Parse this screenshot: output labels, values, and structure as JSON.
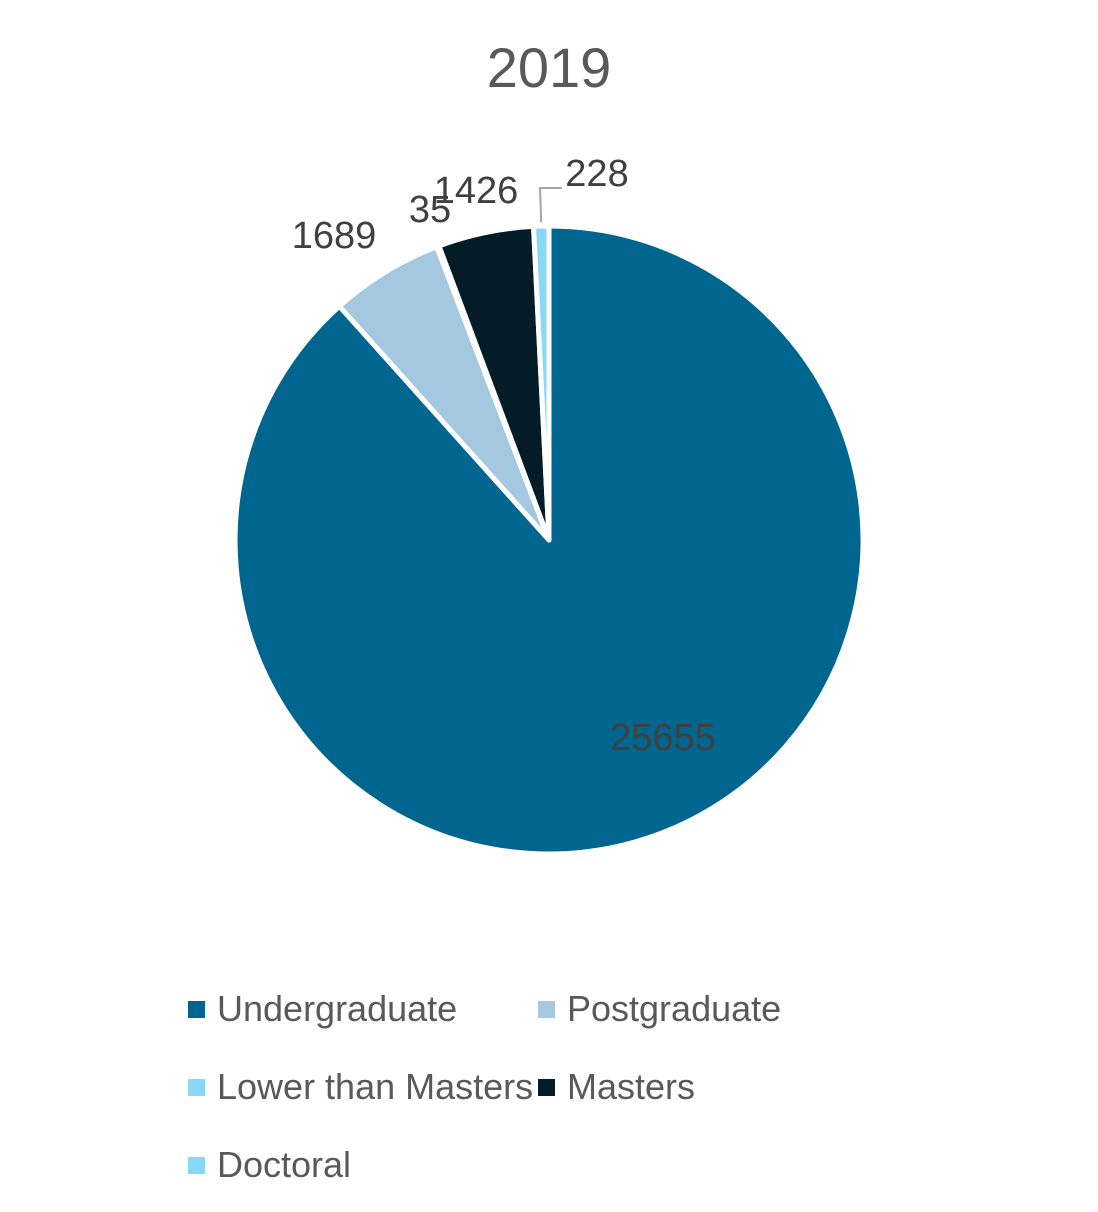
{
  "chart_data": {
    "type": "pie",
    "title": "2019",
    "series": [
      {
        "name": "",
        "categories": [
          "Undergraduate",
          "Postgraduate",
          "Lower than Masters",
          "Masters",
          "Doctoral"
        ],
        "values": [
          25655,
          1689,
          35,
          1426,
          228
        ],
        "colors": [
          "#00668f",
          "#a3c8e0",
          "#88d8f7",
          "#031c28",
          "#88d8f7"
        ]
      }
    ],
    "legend_position": "bottom",
    "start_angle_deg": 0,
    "direction": "clockwise"
  },
  "legend": {
    "items": [
      {
        "label": "Undergraduate",
        "color": "#00668f"
      },
      {
        "label": "Postgraduate",
        "color": "#a3c8e0"
      },
      {
        "label": "Lower than Masters",
        "color": "#88d8f7"
      },
      {
        "label": "Masters",
        "color": "#031c28"
      },
      {
        "label": "Doctoral",
        "color": "#88d8f7"
      }
    ]
  }
}
